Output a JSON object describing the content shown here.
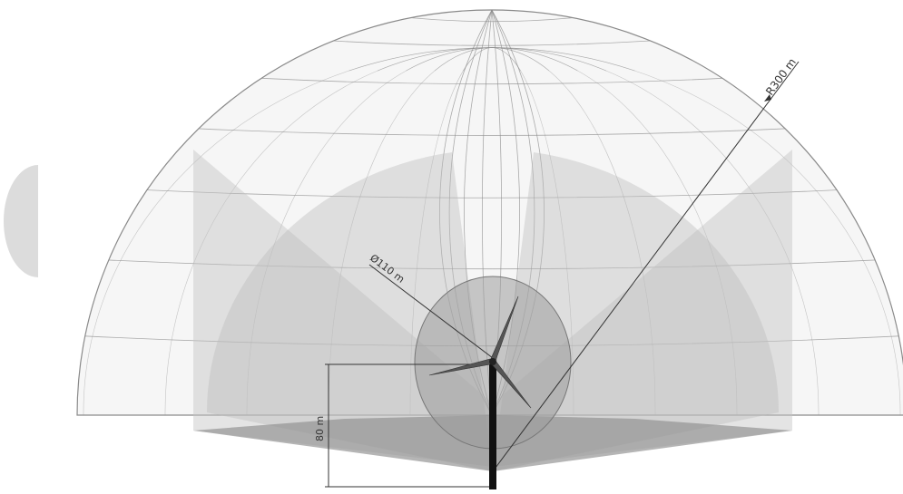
{
  "labels": {
    "radius": "R300 m",
    "rotor_diameter": "Ø110 m",
    "hub_height": "80 m"
  },
  "colors": {
    "background": "#ffffff",
    "dome_fill": "#eeeeee",
    "grid_line": "#8a8a8a",
    "side_panels": "#c4c4c4",
    "inner_sector": "#bdbdbd",
    "rotor_disk": "#9c9c9c",
    "ground_wedge": "#8e8e8e",
    "tower": "#111111",
    "dimension_line": "#333333",
    "left_shape": "#dcdcdc"
  }
}
